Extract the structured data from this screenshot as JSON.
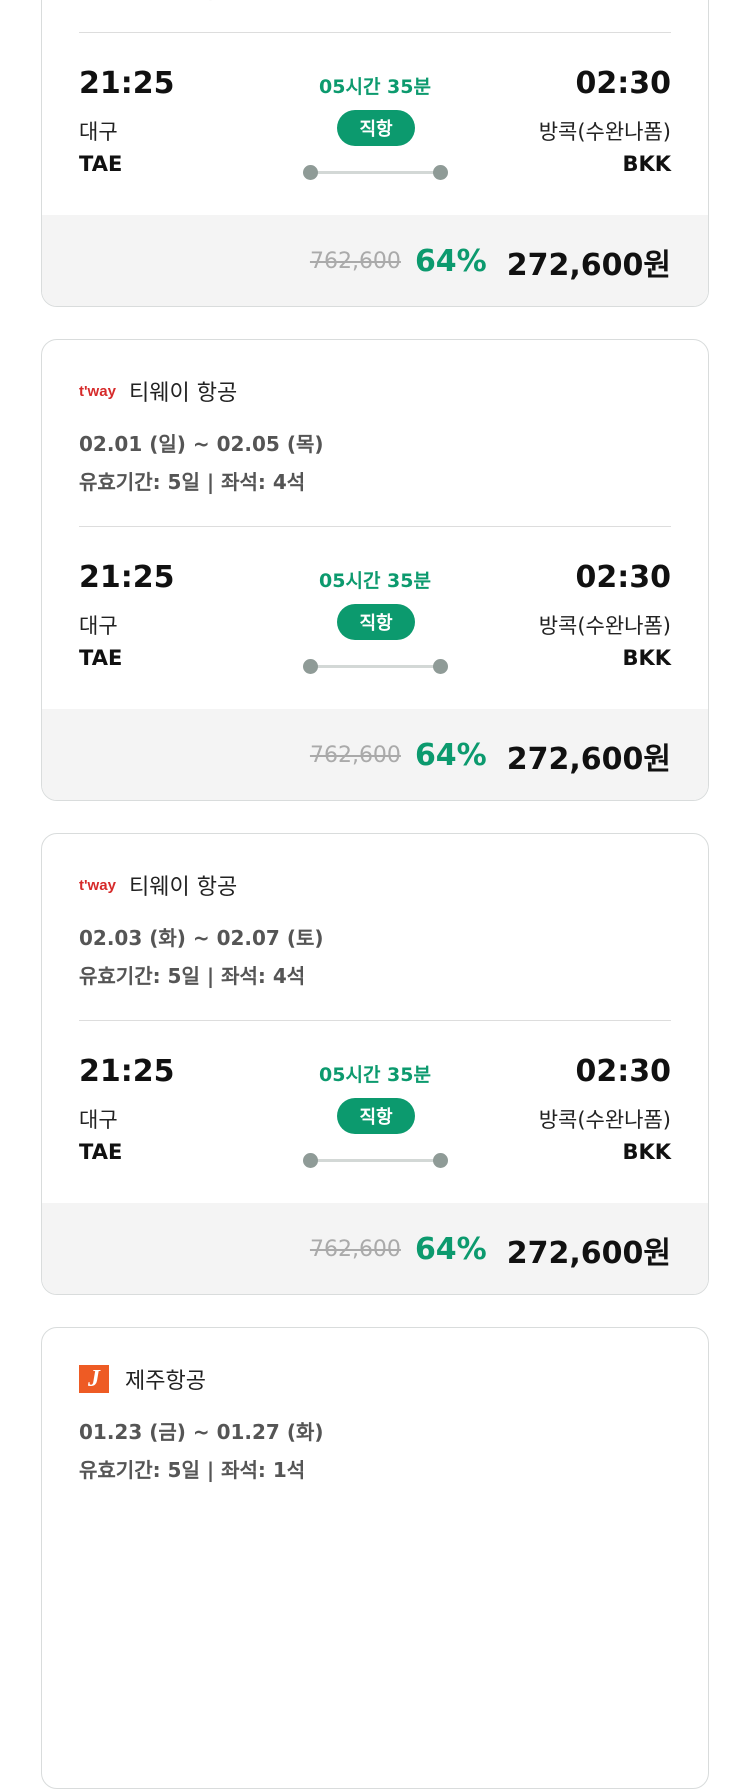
{
  "colors": {
    "accent": "#0c9a6e",
    "tway": "#d62a2a",
    "jeju": "#ee5b24"
  },
  "flights": [
    {
      "airline": "티웨이 항공",
      "logo": "tway",
      "logo_text": "t'way",
      "dates": "02.01 (일) ~ 02.05 (목)",
      "validity": "유효기간: 5일 | 좌석: 4석",
      "dep_time": "21:25",
      "dep_city": "대구",
      "dep_code": "TAE",
      "arr_time": "02:30",
      "arr_city": "방콕(수완나폼)",
      "arr_code": "BKK",
      "duration": "05시간 35분",
      "type": "직항",
      "original_price": "762,600",
      "discount": "64%",
      "price": "272,600원"
    },
    {
      "airline": "티웨이 항공",
      "logo": "tway",
      "logo_text": "t'way",
      "dates": "02.01 (일) ~ 02.05 (목)",
      "validity": "유효기간: 5일 | 좌석: 4석",
      "dep_time": "21:25",
      "dep_city": "대구",
      "dep_code": "TAE",
      "arr_time": "02:30",
      "arr_city": "방콕(수완나폼)",
      "arr_code": "BKK",
      "duration": "05시간 35분",
      "type": "직항",
      "original_price": "762,600",
      "discount": "64%",
      "price": "272,600원"
    },
    {
      "airline": "티웨이 항공",
      "logo": "tway",
      "logo_text": "t'way",
      "dates": "02.03 (화) ~ 02.07 (토)",
      "validity": "유효기간: 5일 | 좌석: 4석",
      "dep_time": "21:25",
      "dep_city": "대구",
      "dep_code": "TAE",
      "arr_time": "02:30",
      "arr_city": "방콕(수완나폼)",
      "arr_code": "BKK",
      "duration": "05시간 35분",
      "type": "직항",
      "original_price": "762,600",
      "discount": "64%",
      "price": "272,600원"
    },
    {
      "airline": "제주항공",
      "logo": "jeju",
      "logo_text": "J",
      "dates": "01.23 (금) ~ 01.27 (화)",
      "validity": "유효기간: 5일 | 좌석: 1석"
    }
  ]
}
